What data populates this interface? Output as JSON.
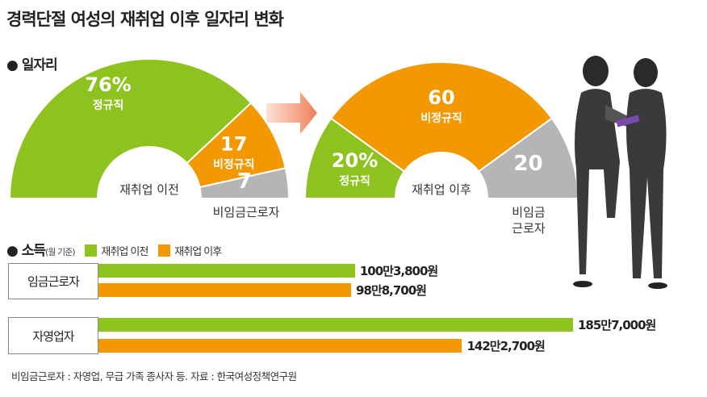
{
  "title": "경력단절 여성의 재취업 이후 일자리 변화",
  "jobs_section": "일자리",
  "income_section": "소득",
  "income_basis": "(월 기준)",
  "colors": {
    "green": "#8dc21f",
    "orange": "#f39800",
    "gray": "#b5b5b8",
    "arrow": "#f08c6a"
  },
  "chart_data": [
    {
      "type": "pie",
      "title": "재취업 이전",
      "slices": [
        {
          "label": "정규직",
          "value": 76,
          "display": "76%"
        },
        {
          "label": "비정규직",
          "value": 17,
          "display": "17"
        },
        {
          "label": "비임금근로자",
          "value": 7,
          "display": "7"
        }
      ]
    },
    {
      "type": "pie",
      "title": "재취업 이후",
      "slices": [
        {
          "label": "정규직",
          "value": 20,
          "display": "20%"
        },
        {
          "label": "비정규직",
          "value": 60,
          "display": "60"
        },
        {
          "label": "비임금근로자",
          "value": 20,
          "display": "20",
          "label_lines": [
            "비임금",
            "근로자"
          ]
        }
      ]
    },
    {
      "type": "bar",
      "title": "소득(월 기준)",
      "unit": "원",
      "categories": [
        "임금근로자",
        "자영업자"
      ],
      "series": [
        {
          "name": "재취업 이전",
          "values": [
            1003800,
            1857000
          ],
          "labels": [
            "100만3,800원",
            "185만7,000원"
          ]
        },
        {
          "name": "재취업 이후",
          "values": [
            988700,
            1422700
          ],
          "labels": [
            "98만8,700원",
            "142만2,700원"
          ]
        }
      ]
    }
  ],
  "note": "비임금근로자 : 자영업, 무급 가족 종사자 등. 자료 : 한국여성정책연구원"
}
